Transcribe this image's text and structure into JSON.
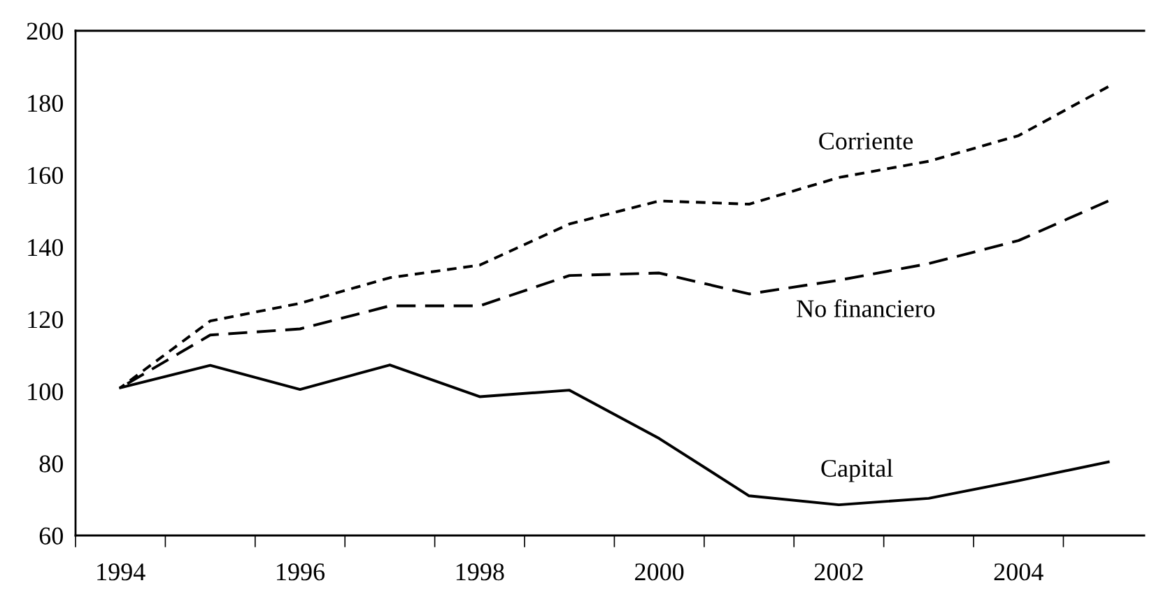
{
  "chart_data": {
    "type": "line",
    "categories": [
      "1994",
      null,
      "1996",
      null,
      "1998",
      null,
      "2000",
      null,
      "2002",
      null,
      "2004",
      null
    ],
    "series": [
      {
        "name": "Corriente",
        "color": "#000000",
        "line_style": "dotted",
        "values": [
          101,
          119.5,
          124.4,
          131.5,
          135,
          146.4,
          152.8,
          151.9,
          159.3,
          163.8,
          170.9,
          184.5
        ]
      },
      {
        "name": "No financiero",
        "color": "#000000",
        "line_style": "dashed",
        "values": [
          101,
          115.6,
          117.3,
          123.7,
          123.7,
          132.1,
          132.8,
          127,
          130.8,
          135.4,
          141.8,
          152.8
        ]
      },
      {
        "name": "Capital",
        "color": "#000000",
        "line_style": "solid",
        "values": [
          101,
          107.2,
          100.5,
          107.3,
          98.5,
          100.3,
          86.9,
          71,
          68.5,
          70.3,
          75.2,
          80.4
        ]
      }
    ],
    "ylim": [
      60,
      200
    ],
    "yticks": [
      60,
      80,
      100,
      120,
      140,
      160,
      180,
      200
    ],
    "grid": false,
    "legend": false,
    "marker": "none"
  }
}
